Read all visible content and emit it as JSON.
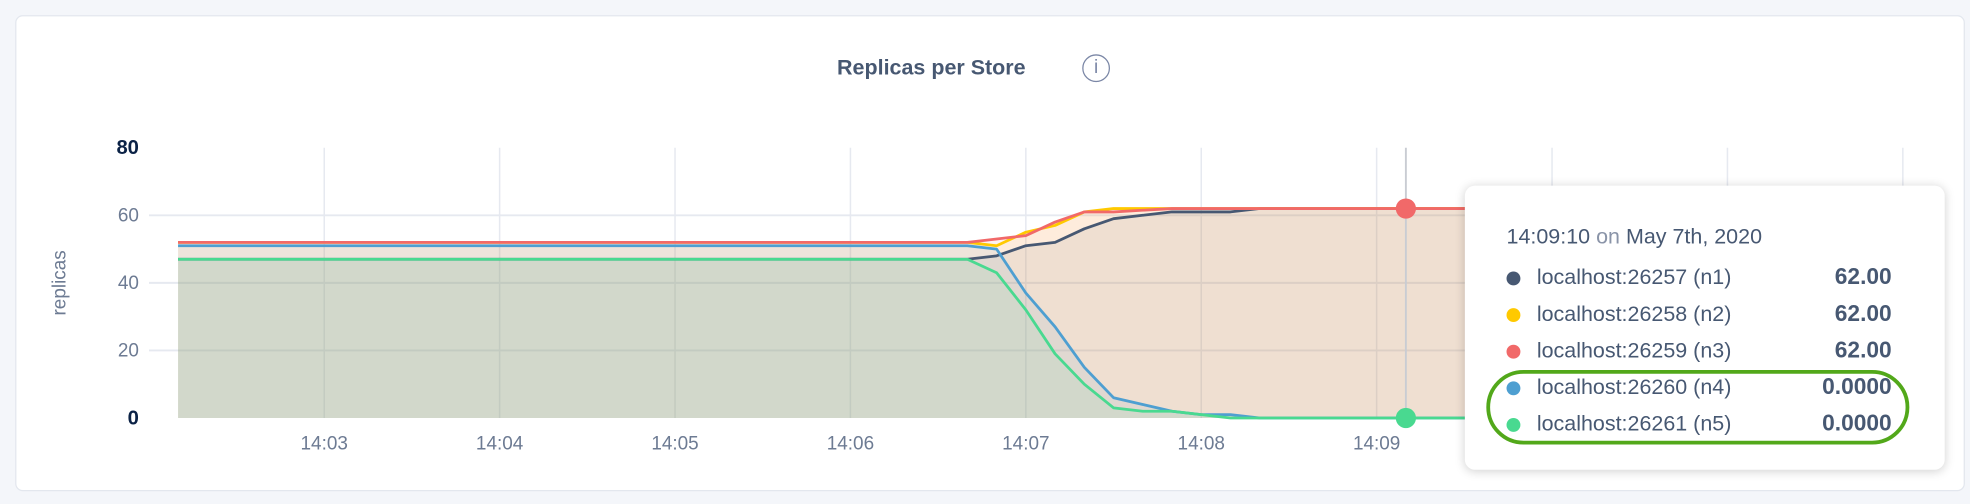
{
  "chart_data": {
    "type": "area",
    "title": "Replicas per Store",
    "ylabel": "replicas",
    "xlabel": "",
    "ylim": [
      0,
      80
    ],
    "yticks": [
      "0",
      "20",
      "40",
      "60",
      "80"
    ],
    "xticks": [
      "14:03",
      "14:04",
      "14:05",
      "14:06",
      "14:07",
      "14:08",
      "14:09"
    ],
    "xlim": [
      "14:02:10",
      "14:12:10"
    ],
    "grid": true,
    "series": [
      {
        "name": "localhost:26257 (n1)",
        "color": "#475872",
        "points": [
          [
            "14:02:10",
            47
          ],
          [
            "14:06:40",
            47
          ],
          [
            "14:06:50",
            48
          ],
          [
            "14:07:00",
            51
          ],
          [
            "14:07:10",
            52
          ],
          [
            "14:07:20",
            56
          ],
          [
            "14:07:30",
            59
          ],
          [
            "14:07:40",
            60
          ],
          [
            "14:07:50",
            61
          ],
          [
            "14:08:10",
            61
          ],
          [
            "14:08:20",
            62
          ],
          [
            "14:12:10",
            62
          ]
        ]
      },
      {
        "name": "localhost:26258 (n2)",
        "color": "#ffc900",
        "points": [
          [
            "14:02:10",
            52
          ],
          [
            "14:06:40",
            52
          ],
          [
            "14:06:50",
            51
          ],
          [
            "14:07:00",
            55
          ],
          [
            "14:07:10",
            57
          ],
          [
            "14:07:20",
            61
          ],
          [
            "14:07:30",
            62
          ],
          [
            "14:12:10",
            62
          ]
        ]
      },
      {
        "name": "localhost:26259 (n3)",
        "color": "#f16969",
        "points": [
          [
            "14:02:10",
            52
          ],
          [
            "14:06:40",
            52
          ],
          [
            "14:06:50",
            53
          ],
          [
            "14:07:00",
            54
          ],
          [
            "14:07:10",
            58
          ],
          [
            "14:07:20",
            61
          ],
          [
            "14:07:30",
            61
          ],
          [
            "14:07:50",
            62
          ],
          [
            "14:12:10",
            62
          ]
        ]
      },
      {
        "name": "localhost:26260 (n4)",
        "color": "#4e9fd1",
        "points": [
          [
            "14:02:10",
            51
          ],
          [
            "14:06:40",
            51
          ],
          [
            "14:06:50",
            50
          ],
          [
            "14:07:00",
            37
          ],
          [
            "14:07:10",
            27
          ],
          [
            "14:07:20",
            15
          ],
          [
            "14:07:30",
            6
          ],
          [
            "14:07:40",
            4
          ],
          [
            "14:07:50",
            2
          ],
          [
            "14:08:00",
            1
          ],
          [
            "14:08:10",
            1
          ],
          [
            "14:08:20",
            0
          ],
          [
            "14:12:10",
            0
          ]
        ]
      },
      {
        "name": "localhost:26261 (n5)",
        "color": "#49d990",
        "points": [
          [
            "14:02:10",
            47
          ],
          [
            "14:06:40",
            47
          ],
          [
            "14:06:50",
            43
          ],
          [
            "14:07:00",
            32
          ],
          [
            "14:07:10",
            19
          ],
          [
            "14:07:20",
            10
          ],
          [
            "14:07:30",
            3
          ],
          [
            "14:07:40",
            2
          ],
          [
            "14:07:50",
            2
          ],
          [
            "14:08:00",
            1
          ],
          [
            "14:08:10",
            0
          ],
          [
            "14:12:10",
            0
          ]
        ]
      }
    ],
    "hover_time": "14:09:10"
  },
  "tooltip": {
    "time": "14:09:10",
    "on": "on",
    "date": "May 7th, 2020",
    "rows": [
      {
        "label": "localhost:26257 (n1)",
        "value": "62.00",
        "color": "#475872"
      },
      {
        "label": "localhost:26258 (n2)",
        "value": "62.00",
        "color": "#ffc900"
      },
      {
        "label": "localhost:26259 (n3)",
        "value": "62.00",
        "color": "#f16969"
      },
      {
        "label": "localhost:26260 (n4)",
        "value": "0.0000",
        "color": "#4e9fd1"
      },
      {
        "label": "localhost:26261 (n5)",
        "value": "0.0000",
        "color": "#49d990"
      }
    ],
    "highlight_color": "#52a81a"
  },
  "info_icon": "info-circle-icon",
  "info_glyph": "i"
}
